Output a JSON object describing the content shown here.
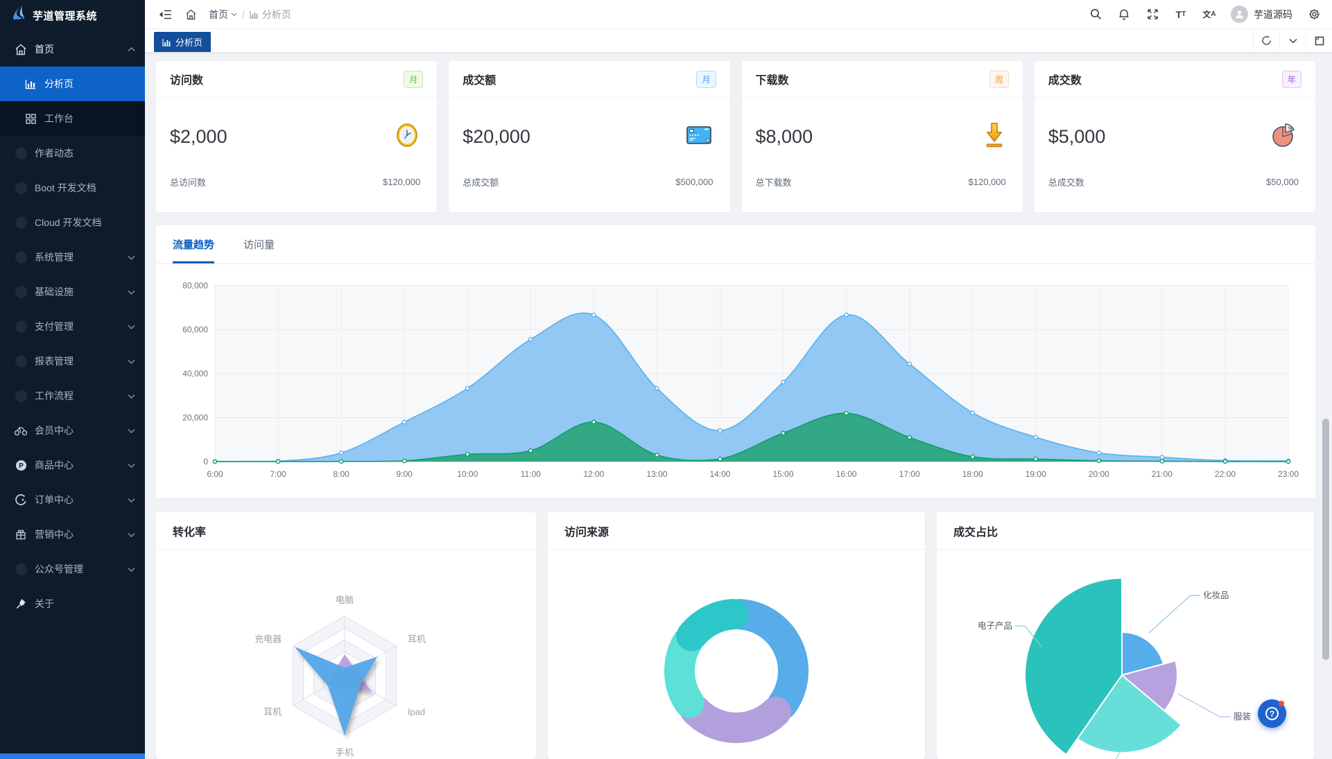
{
  "app": {
    "title": "芋道管理系统"
  },
  "header": {
    "breadcrumb": {
      "root": "首页",
      "current": "分析页"
    },
    "user_name": "芋道源码",
    "font_icon_big": "T",
    "font_icon_small": "T",
    "locale_icon_cjk": "文",
    "locale_icon_latin": "A"
  },
  "tabbar": {
    "active_tab": "分析页"
  },
  "sidebar": {
    "items": [
      {
        "label": "首页",
        "icon": "home",
        "chevron": "up",
        "open": true,
        "children": [
          {
            "label": "分析页",
            "icon": "chart",
            "active": true
          },
          {
            "label": "工作台",
            "icon": "grid",
            "active": false
          }
        ]
      },
      {
        "label": "作者动态",
        "icon": "dot"
      },
      {
        "label": "Boot 开发文档",
        "icon": "dot"
      },
      {
        "label": "Cloud 开发文档",
        "icon": "dot"
      },
      {
        "label": "系统管理",
        "icon": "dot",
        "chevron": "down"
      },
      {
        "label": "基础设施",
        "icon": "dot",
        "chevron": "down"
      },
      {
        "label": "支付管理",
        "icon": "dot",
        "chevron": "down"
      },
      {
        "label": "报表管理",
        "icon": "dot",
        "chevron": "down"
      },
      {
        "label": "工作流程",
        "icon": "dot",
        "chevron": "down"
      },
      {
        "label": "会员中心",
        "icon": "member",
        "chevron": "down"
      },
      {
        "label": "商品中心",
        "icon": "product",
        "chevron": "down"
      },
      {
        "label": "订单中心",
        "icon": "order",
        "chevron": "down"
      },
      {
        "label": "营销中心",
        "icon": "market",
        "chevron": "down"
      },
      {
        "label": "公众号管理",
        "icon": "dot",
        "chevron": "down"
      },
      {
        "label": "关于",
        "icon": "pin"
      }
    ]
  },
  "stat_cards": [
    {
      "title": "访问数",
      "badge": "月",
      "badge_theme": "green",
      "value": "$2,000",
      "icon": "clock-icon",
      "footer_label": "总访问数",
      "footer_value": "$120,000"
    },
    {
      "title": "成交额",
      "badge": "月",
      "badge_theme": "blue",
      "value": "$20,000",
      "icon": "bank-card-icon",
      "footer_label": "总成交额",
      "footer_value": "$500,000"
    },
    {
      "title": "下载数",
      "badge": "周",
      "badge_theme": "orange",
      "value": "$8,000",
      "icon": "download-icon",
      "footer_label": "总下载数",
      "footer_value": "$120,000"
    },
    {
      "title": "成交数",
      "badge": "年",
      "badge_theme": "purple",
      "value": "$5,000",
      "icon": "pie-icon",
      "footer_label": "总成交数",
      "footer_value": "$50,000"
    }
  ],
  "trend_panel": {
    "tabs": [
      {
        "label": "流量趋势",
        "active": true
      },
      {
        "label": "访问量",
        "active": false
      }
    ]
  },
  "panels": {
    "conversion": "转化率",
    "source": "访问来源",
    "deal": "成交占比"
  },
  "chart_data": [
    {
      "id": "traffic-trend",
      "type": "area",
      "x": [
        "6:00",
        "7:00",
        "8:00",
        "9:00",
        "10:00",
        "11:00",
        "12:00",
        "13:00",
        "14:00",
        "15:00",
        "16:00",
        "17:00",
        "18:00",
        "19:00",
        "20:00",
        "21:00",
        "22:00",
        "23:00"
      ],
      "series": [
        {
          "color": "#5AB1EF",
          "fill": "#8CC5F2",
          "fill_opacity": 0.95,
          "values": [
            111,
            222,
            4000,
            18000,
            33333,
            55555,
            66666,
            33333,
            14141,
            36163,
            66666,
            44444,
            22222,
            11111,
            4000,
            2000,
            500,
            333
          ]
        },
        {
          "color": "#0F9D6A",
          "fill": "#2AA57C",
          "fill_opacity": 0.92,
          "values": [
            33,
            66,
            88,
            333,
            3333,
            5000,
            18000,
            3000,
            1200,
            13000,
            22000,
            11000,
            2221,
            1201,
            390,
            198,
            60,
            30
          ]
        }
      ],
      "ylim": [
        0,
        80000
      ],
      "yticks": [
        0,
        20000,
        40000,
        60000,
        80000
      ],
      "ytick_labels": [
        "0",
        "20,000",
        "40,000",
        "60,000",
        "80,000"
      ],
      "grid": true,
      "legend": "none"
    },
    {
      "id": "conversion-radar",
      "type": "radar",
      "max": 100,
      "indicators": [
        "电脑",
        "充电器",
        "耳机",
        "手机",
        "Ipad",
        "耳机"
      ],
      "series": [
        {
          "color": "#B6A2DE",
          "values": [
            35,
            18,
            30,
            18,
            50,
            20
          ]
        },
        {
          "color": "#54A7E8",
          "values": [
            13,
            95,
            32,
            98,
            30,
            62
          ]
        }
      ]
    },
    {
      "id": "visit-source",
      "type": "donut",
      "labels_visible": false,
      "segments": [
        {
          "pct": 34,
          "color": "#57ACE9",
          "start": 3,
          "end": 126
        },
        {
          "pct": 25,
          "color": "#B2A0DC",
          "start": 136,
          "end": 227
        },
        {
          "pct": 19,
          "color": "#5CE0D8",
          "start": 236,
          "end": 300
        },
        {
          "pct": 14,
          "color": "#2CC7C9",
          "start": 308,
          "end": 357
        }
      ]
    },
    {
      "id": "deal-share",
      "type": "rose",
      "slices": [
        {
          "name": "化妆品",
          "color": "#57ADE9",
          "start": 0,
          "end": 75,
          "r": 62
        },
        {
          "name": "服装",
          "color": "#B6A2DE",
          "start": 75,
          "end": 130,
          "r": 80
        },
        {
          "name": "",
          "color": "#67DFD8",
          "start": 130,
          "end": 215,
          "r": 112
        },
        {
          "name": "电子产品",
          "color": "#2CC2BC",
          "start": 215,
          "end": 360,
          "r": 140
        }
      ]
    }
  ]
}
